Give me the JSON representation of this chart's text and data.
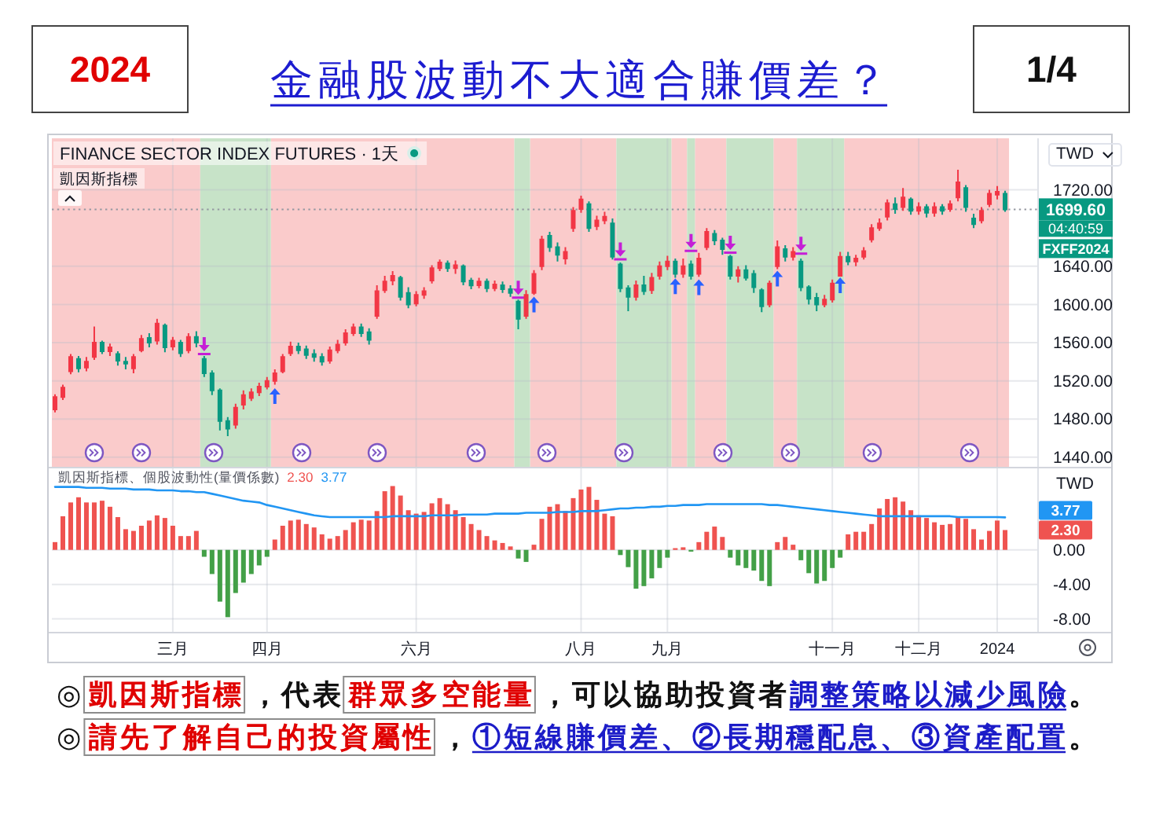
{
  "chart_data": [
    {
      "type": "candlestick",
      "title": "金融股波動不大適合賺價差？",
      "subtitle": "FINANCE SECTOR INDEX FUTURES · 1天",
      "ylabel": "TWD",
      "annotations": [
        "2024",
        "1/4",
        "凱因斯指標",
        "FXFF2024",
        "04:40:59"
      ],
      "categories": [
        null,
        null,
        null,
        null,
        null,
        null,
        null,
        null,
        null,
        null,
        null,
        null,
        null,
        null,
        null,
        null,
        null,
        null,
        null,
        null,
        null,
        null,
        null,
        null,
        null,
        null,
        null,
        null,
        null,
        null,
        null,
        null,
        null,
        null,
        null,
        null,
        null,
        null,
        null,
        null,
        null,
        null,
        null,
        null,
        null,
        null,
        null,
        null,
        null,
        null,
        null,
        null,
        null,
        null,
        null,
        null,
        null,
        null,
        null,
        null,
        null,
        null,
        null,
        null,
        null,
        null,
        null,
        null,
        null,
        null,
        null,
        null,
        null,
        null,
        null,
        null,
        null,
        null,
        null,
        null,
        null,
        null,
        null,
        null,
        null,
        null,
        null,
        null,
        null,
        null,
        null,
        null,
        null,
        null,
        null,
        null,
        null,
        null,
        null,
        null,
        null,
        null,
        null,
        null,
        null,
        null,
        null,
        null,
        null,
        null,
        null,
        null,
        null,
        null,
        null,
        null,
        null,
        null,
        null,
        null,
        null,
        null
      ],
      "ohlc": [
        [
          1490,
          1506,
          1487,
          1503
        ],
        [
          1503,
          1516,
          1500,
          1513
        ],
        [
          1530,
          1548,
          1527,
          1545
        ],
        [
          1543,
          1546,
          1529,
          1533
        ],
        [
          1534,
          1545,
          1530,
          1540
        ],
        [
          1545,
          1577,
          1542,
          1560
        ],
        [
          1560,
          1562,
          1548,
          1551
        ],
        [
          1551,
          1559,
          1546,
          1555
        ],
        [
          1548,
          1551,
          1536,
          1541
        ],
        [
          1540,
          1545,
          1532,
          1538
        ],
        [
          1533,
          1548,
          1528,
          1545
        ],
        [
          1552,
          1568,
          1550,
          1564
        ],
        [
          1565,
          1570,
          1555,
          1560
        ],
        [
          1562,
          1585,
          1558,
          1580
        ],
        [
          1578,
          1580,
          1550,
          1555
        ],
        [
          1556,
          1566,
          1552,
          1562
        ],
        [
          1560,
          1563,
          1545,
          1549
        ],
        [
          1552,
          1570,
          1549,
          1566
        ],
        [
          1566,
          1572,
          1555,
          1560
        ],
        [
          1543,
          1546,
          1524,
          1528
        ],
        [
          1528,
          1531,
          1505,
          1510
        ],
        [
          1510,
          1512,
          1468,
          1478
        ],
        [
          1478,
          1482,
          1462,
          1470
        ],
        [
          1474,
          1496,
          1470,
          1492
        ],
        [
          1495,
          1510,
          1490,
          1505
        ],
        [
          1502,
          1512,
          1499,
          1508
        ],
        [
          1508,
          1518,
          1504,
          1514
        ],
        [
          1514,
          1524,
          1511,
          1520
        ],
        [
          1520,
          1532,
          1516,
          1528
        ],
        [
          1530,
          1548,
          1528,
          1545
        ],
        [
          1549,
          1561,
          1546,
          1556
        ],
        [
          1556,
          1560,
          1548,
          1552
        ],
        [
          1553,
          1557,
          1543,
          1547
        ],
        [
          1548,
          1553,
          1540,
          1545
        ],
        [
          1545,
          1549,
          1536,
          1540
        ],
        [
          1541,
          1556,
          1538,
          1552
        ],
        [
          1552,
          1563,
          1549,
          1558
        ],
        [
          1560,
          1574,
          1557,
          1570
        ],
        [
          1570,
          1580,
          1567,
          1576
        ],
        [
          1576,
          1580,
          1566,
          1570
        ],
        [
          1571,
          1575,
          1558,
          1563
        ],
        [
          1588,
          1620,
          1585,
          1614
        ],
        [
          1615,
          1630,
          1612,
          1624
        ],
        [
          1625,
          1635,
          1620,
          1630
        ],
        [
          1628,
          1630,
          1604,
          1608
        ],
        [
          1612,
          1618,
          1596,
          1600
        ],
        [
          1601,
          1614,
          1598,
          1610
        ],
        [
          1610,
          1618,
          1606,
          1614
        ],
        [
          1625,
          1641,
          1622,
          1638
        ],
        [
          1638,
          1647,
          1635,
          1644
        ],
        [
          1643,
          1646,
          1634,
          1638
        ],
        [
          1638,
          1646,
          1632,
          1641
        ],
        [
          1640,
          1642,
          1620,
          1624
        ],
        [
          1625,
          1628,
          1616,
          1620
        ],
        [
          1620,
          1628,
          1617,
          1624
        ],
        [
          1624,
          1627,
          1613,
          1617
        ],
        [
          1617,
          1625,
          1614,
          1621
        ],
        [
          1620,
          1624,
          1612,
          1616
        ],
        [
          1616,
          1620,
          1608,
          1612
        ],
        [
          1603,
          1605,
          1574,
          1585
        ],
        [
          1588,
          1615,
          1585,
          1610
        ],
        [
          1612,
          1636,
          1610,
          1632
        ],
        [
          1640,
          1672,
          1636,
          1668
        ],
        [
          1672,
          1676,
          1655,
          1660
        ],
        [
          1660,
          1665,
          1645,
          1652
        ],
        [
          1648,
          1660,
          1642,
          1655
        ],
        [
          1680,
          1702,
          1676,
          1698
        ],
        [
          1700,
          1714,
          1696,
          1710
        ],
        [
          1705,
          1708,
          1676,
          1680
        ],
        [
          1682,
          1693,
          1678,
          1688
        ],
        [
          1688,
          1697,
          1684,
          1692
        ],
        [
          1685,
          1690,
          1647,
          1650
        ],
        [
          1642,
          1644,
          1613,
          1617
        ],
        [
          1617,
          1620,
          1593,
          1608
        ],
        [
          1608,
          1625,
          1604,
          1620
        ],
        [
          1620,
          1630,
          1610,
          1614
        ],
        [
          1615,
          1633,
          1611,
          1628
        ],
        [
          1630,
          1645,
          1626,
          1640
        ],
        [
          1640,
          1651,
          1636,
          1645
        ],
        [
          1645,
          1648,
          1628,
          1632
        ],
        [
          1632,
          1648,
          1628,
          1640
        ],
        [
          1642,
          1646,
          1626,
          1630
        ],
        [
          1632,
          1654,
          1629,
          1648
        ],
        [
          1660,
          1680,
          1657,
          1676
        ],
        [
          1674,
          1678,
          1662,
          1667
        ],
        [
          1667,
          1670,
          1652,
          1658
        ],
        [
          1650,
          1652,
          1626,
          1630
        ],
        [
          1630,
          1640,
          1623,
          1636
        ],
        [
          1636,
          1641,
          1625,
          1628
        ],
        [
          1632,
          1636,
          1612,
          1618
        ],
        [
          1615,
          1617,
          1592,
          1598
        ],
        [
          1600,
          1625,
          1597,
          1622
        ],
        [
          1640,
          1667,
          1637,
          1660
        ],
        [
          1658,
          1662,
          1645,
          1650
        ],
        [
          1650,
          1660,
          1646,
          1655
        ],
        [
          1645,
          1648,
          1614,
          1618
        ],
        [
          1618,
          1620,
          1600,
          1606
        ],
        [
          1607,
          1612,
          1593,
          1600
        ],
        [
          1600,
          1610,
          1597,
          1605
        ],
        [
          1605,
          1626,
          1602,
          1622
        ],
        [
          1630,
          1655,
          1630,
          1650
        ],
        [
          1650,
          1655,
          1641,
          1645
        ],
        [
          1645,
          1652,
          1640,
          1648
        ],
        [
          1650,
          1660,
          1647,
          1656
        ],
        [
          1668,
          1684,
          1665,
          1680
        ],
        [
          1680,
          1690,
          1677,
          1685
        ],
        [
          1692,
          1710,
          1688,
          1706
        ],
        [
          1705,
          1712,
          1695,
          1700
        ],
        [
          1702,
          1722,
          1698,
          1712
        ],
        [
          1710,
          1712,
          1694,
          1698
        ],
        [
          1698,
          1707,
          1694,
          1702
        ],
        [
          1702,
          1705,
          1691,
          1696
        ],
        [
          1696,
          1707,
          1692,
          1702
        ],
        [
          1702,
          1705,
          1694,
          1698
        ],
        [
          1700,
          1709,
          1697,
          1705
        ],
        [
          1712,
          1741,
          1708,
          1728
        ],
        [
          1722,
          1725,
          1697,
          1702
        ],
        [
          1690,
          1695,
          1680,
          1684
        ],
        [
          1688,
          1702,
          1685,
          1698
        ],
        [
          1705,
          1720,
          1702,
          1716
        ],
        [
          1715,
          1724,
          1710,
          1718
        ],
        [
          1716,
          1719,
          1697,
          1699.6
        ]
      ],
      "colors": [
        "#f23645",
        "#f23645",
        "#f23645",
        "#089981",
        "#f23645",
        "#f23645",
        "#089981",
        "#f23645",
        "#089981",
        "#089981",
        "#f23645",
        "#f23645",
        "#089981",
        "#f23645",
        "#089981",
        "#f23645",
        "#089981",
        "#f23645",
        "#089981",
        "#089981",
        "#089981",
        "#089981",
        "#089981",
        "#f23645",
        "#f23645",
        "#f23645",
        "#f23645",
        "#f23645",
        "#f23645",
        "#f23645",
        "#f23645",
        "#089981",
        "#089981",
        "#089981",
        "#089981",
        "#f23645",
        "#f23645",
        "#f23645",
        "#f23645",
        "#089981",
        "#089981",
        "#f23645",
        "#f23645",
        "#f23645",
        "#089981",
        "#089981",
        "#f23645",
        "#f23645",
        "#f23645",
        "#f23645",
        "#089981",
        "#f23645",
        "#089981",
        "#089981",
        "#f23645",
        "#089981",
        "#f23645",
        "#089981",
        "#089981",
        "#089981",
        "#f23645",
        "#f23645",
        "#f23645",
        "#089981",
        "#089981",
        "#f23645",
        "#f23645",
        "#f23645",
        "#089981",
        "#f23645",
        "#f23645",
        "#089981",
        "#089981",
        "#089981",
        "#f23645",
        "#089981",
        "#f23645",
        "#f23645",
        "#f23645",
        "#089981",
        "#f23645",
        "#089981",
        "#f23645",
        "#f23645",
        "#089981",
        "#089981",
        "#089981",
        "#f23645",
        "#089981",
        "#089981",
        "#089981",
        "#f23645",
        "#f23645",
        "#089981",
        "#f23645",
        "#089981",
        "#089981",
        "#089981",
        "#f23645",
        "#f23645",
        "#f23645",
        "#089981",
        "#f23645",
        "#f23645",
        "#f23645",
        "#f23645",
        "#f23645",
        "#089981",
        "#f23645",
        "#089981",
        "#f23645",
        "#089981",
        "#f23645",
        "#089981",
        "#f23645",
        "#f23645",
        "#089981",
        "#089981",
        "#f23645",
        "#f23645",
        "#f23645",
        "#089981"
      ],
      "series": [
        {
          "type": "scatter",
          "color": "#2962ff",
          "marker": "triangle",
          "values": [
            null,
            null,
            null,
            null,
            null,
            null,
            null,
            null,
            null,
            null,
            null,
            null,
            null,
            null,
            null,
            null,
            null,
            null,
            null,
            null,
            null,
            null,
            null,
            null,
            null,
            null,
            null,
            null,
            1504,
            null,
            null,
            null,
            null,
            null,
            null,
            null,
            null,
            null,
            null,
            null,
            null,
            null,
            null,
            null,
            null,
            null,
            null,
            null,
            null,
            null,
            null,
            null,
            null,
            null,
            null,
            null,
            null,
            null,
            null,
            null,
            null,
            1600,
            null,
            null,
            null,
            null,
            null,
            null,
            null,
            null,
            null,
            null,
            null,
            null,
            null,
            null,
            null,
            null,
            null,
            1619,
            null,
            null,
            1618,
            null,
            null,
            null,
            null,
            null,
            null,
            null,
            null,
            null,
            1627,
            null,
            null,
            null,
            null,
            null,
            null,
            null,
            1620,
            null,
            null,
            null,
            null,
            null,
            null,
            null,
            null,
            null,
            null,
            null,
            null,
            null,
            null,
            null,
            null,
            null,
            null,
            null,
            null,
            null
          ]
        },
        {
          "type": "scatter",
          "color": "#c51fd6",
          "marker": "triangle",
          "values": [
            null,
            null,
            null,
            null,
            null,
            null,
            null,
            null,
            null,
            null,
            null,
            null,
            null,
            null,
            null,
            null,
            null,
            null,
            null,
            1556,
            null,
            null,
            null,
            null,
            null,
            null,
            null,
            null,
            null,
            null,
            null,
            null,
            null,
            null,
            null,
            null,
            null,
            null,
            null,
            null,
            null,
            null,
            null,
            null,
            null,
            null,
            null,
            null,
            null,
            null,
            null,
            null,
            null,
            null,
            null,
            null,
            null,
            null,
            null,
            1615,
            null,
            null,
            null,
            null,
            null,
            null,
            null,
            null,
            null,
            null,
            null,
            null,
            1655,
            null,
            null,
            null,
            null,
            null,
            null,
            null,
            null,
            1664,
            null,
            null,
            null,
            null,
            1662,
            null,
            null,
            null,
            null,
            null,
            null,
            null,
            null,
            1661,
            null,
            null,
            null,
            null,
            null,
            null,
            null,
            null,
            null,
            null,
            null,
            null,
            null,
            null,
            null,
            null,
            null,
            null,
            null,
            null,
            null,
            null,
            null,
            null,
            null,
            null
          ]
        }
      ],
      "ylim": [
        1430,
        1774
      ],
      "yticks": [
        {
          "value": 1440,
          "label": "1440.00"
        },
        {
          "value": 1480,
          "label": "1480.00"
        },
        {
          "value": 1520,
          "label": "1520.00"
        },
        {
          "value": 1560,
          "label": "1560.00"
        },
        {
          "value": 1600,
          "label": "1600.00"
        },
        {
          "value": 1640,
          "label": "1640.00"
        },
        {
          "value": 1720,
          "label": "1720.00"
        }
      ],
      "ref_lines": [
        {
          "axis": "y",
          "value": 1699.6,
          "label": "1699.60",
          "color": "#9598a1",
          "line_style": "dotted"
        }
      ],
      "grid": true
    },
    {
      "type": "bar",
      "title": "凱因斯指標、個股波動性(量價係數)",
      "ylabel": "TWD",
      "annotations": [
        "2.30",
        "3.77",
        "2.30",
        "3.77",
        "◎",
        "凱因斯指標",
        "，代表",
        "群眾多空能量",
        "，可以協助投資者",
        "調整策略以減少風險",
        "。",
        "◎",
        "請先了解自己的投資屬性",
        "，",
        "①短線賺價差、②長期穩配息、③資產配置",
        "。"
      ],
      "categories": [
        null,
        null,
        null,
        null,
        null,
        null,
        null,
        null,
        null,
        null,
        null,
        null,
        null,
        null,
        null,
        "三月",
        null,
        null,
        null,
        null,
        null,
        null,
        null,
        null,
        null,
        null,
        null,
        "四月",
        null,
        null,
        null,
        null,
        null,
        null,
        null,
        null,
        null,
        null,
        null,
        null,
        null,
        null,
        null,
        null,
        null,
        null,
        "六月",
        null,
        null,
        null,
        null,
        null,
        null,
        null,
        null,
        null,
        null,
        null,
        null,
        null,
        null,
        null,
        null,
        null,
        null,
        null,
        null,
        "八月",
        null,
        null,
        null,
        null,
        null,
        null,
        null,
        null,
        null,
        null,
        "九月",
        null,
        null,
        null,
        null,
        null,
        null,
        null,
        null,
        null,
        null,
        null,
        null,
        null,
        null,
        null,
        null,
        null,
        null,
        null,
        null,
        "十一月",
        null,
        null,
        null,
        null,
        null,
        null,
        null,
        null,
        null,
        null,
        "十二月",
        null,
        null,
        null,
        null,
        null,
        null,
        null,
        null,
        null,
        "2024",
        null
      ],
      "series": [
        {
          "colors": [
            "#ef5350",
            "#ef5350",
            "#ef5350",
            "#ef5350",
            "#ef5350",
            "#ef5350",
            "#ef5350",
            "#ef5350",
            "#ef5350",
            "#ef5350",
            "#ef5350",
            "#ef5350",
            "#ef5350",
            "#ef5350",
            "#ef5350",
            "#ef5350",
            "#ef5350",
            "#ef5350",
            "#ef5350",
            "#43a047",
            "#43a047",
            "#43a047",
            "#43a047",
            "#43a047",
            "#43a047",
            "#43a047",
            "#43a047",
            "#43a047",
            "#ef5350",
            "#ef5350",
            "#ef5350",
            "#ef5350",
            "#ef5350",
            "#ef5350",
            "#ef5350",
            "#ef5350",
            "#ef5350",
            "#ef5350",
            "#ef5350",
            "#ef5350",
            "#ef5350",
            "#ef5350",
            "#ef5350",
            "#ef5350",
            "#ef5350",
            "#ef5350",
            "#ef5350",
            "#ef5350",
            "#ef5350",
            "#ef5350",
            "#ef5350",
            "#ef5350",
            "#ef5350",
            "#ef5350",
            "#ef5350",
            "#ef5350",
            "#ef5350",
            "#ef5350",
            "#ef5350",
            "#43a047",
            "#43a047",
            "#ef5350",
            "#ef5350",
            "#ef5350",
            "#ef5350",
            "#ef5350",
            "#ef5350",
            "#ef5350",
            "#ef5350",
            "#ef5350",
            "#ef5350",
            "#ef5350",
            "#43a047",
            "#43a047",
            "#43a047",
            "#43a047",
            "#43a047",
            "#43a047",
            "#43a047",
            "#ef5350",
            "#ef5350",
            "#43a047",
            "#ef5350",
            "#ef5350",
            "#ef5350",
            "#ef5350",
            "#43a047",
            "#43a047",
            "#43a047",
            "#43a047",
            "#43a047",
            "#43a047",
            "#ef5350",
            "#ef5350",
            "#ef5350",
            "#43a047",
            "#43a047",
            "#43a047",
            "#43a047",
            "#43a047",
            "#43a047",
            "#ef5350",
            "#ef5350",
            "#ef5350",
            "#ef5350",
            "#ef5350",
            "#ef5350",
            "#ef5350",
            "#ef5350",
            "#ef5350",
            "#ef5350",
            "#ef5350",
            "#ef5350",
            "#ef5350",
            "#ef5350",
            "#ef5350",
            "#ef5350",
            "#ef5350",
            "#ef5350",
            "#ef5350",
            "#ef5350",
            "#ef5350"
          ],
          "values": [
            0.9,
            3.9,
            5.5,
            6.1,
            5.5,
            5.5,
            5.7,
            5.0,
            3.8,
            2.4,
            2.2,
            2.8,
            3.4,
            4.0,
            3.7,
            2.8,
            1.6,
            1.6,
            2.2,
            -0.8,
            -2.8,
            -6.0,
            -7.8,
            -5.0,
            -3.8,
            -2.8,
            -1.8,
            -0.8,
            1.2,
            2.8,
            3.4,
            3.5,
            3.0,
            2.6,
            1.8,
            1.3,
            1.6,
            2.3,
            3.2,
            3.5,
            3.4,
            4.5,
            6.8,
            7.4,
            6.3,
            4.6,
            4.2,
            4.4,
            5.4,
            6.0,
            5.3,
            4.6,
            3.8,
            3.0,
            2.3,
            1.6,
            1.1,
            0.8,
            0.4,
            -1.0,
            -1.4,
            0.6,
            3.6,
            5.0,
            5.3,
            4.5,
            6.0,
            7.0,
            7.3,
            5.8,
            4.2,
            3.9,
            -0.6,
            -2.0,
            -4.5,
            -4.2,
            -3.3,
            -2.1,
            -0.9,
            0.2,
            0.3,
            -0.2,
            0.9,
            2.1,
            2.7,
            1.5,
            -0.9,
            -1.8,
            -2.1,
            -2.4,
            -3.6,
            -4.2,
            0.9,
            1.5,
            0.6,
            -1.2,
            -2.7,
            -3.9,
            -3.6,
            -2.1,
            -0.9,
            1.8,
            2.1,
            2.1,
            3.0,
            4.8,
            5.9,
            6.1,
            5.6,
            4.6,
            4.0,
            3.7,
            3.2,
            2.9,
            3.0,
            3.8,
            3.6,
            2.4,
            1.2,
            2.2,
            3.4,
            2.3
          ]
        },
        {
          "type": "line",
          "color": "#2196f3",
          "values": [
            7.3,
            7.3,
            7.3,
            7.3,
            7.2,
            7.2,
            7.2,
            7.1,
            7.1,
            7.1,
            7.0,
            7.0,
            7.0,
            6.9,
            6.9,
            6.9,
            6.8,
            6.8,
            6.7,
            6.7,
            6.5,
            6.3,
            6.1,
            5.9,
            5.7,
            5.6,
            5.5,
            5.2,
            5.0,
            4.8,
            4.6,
            4.4,
            4.2,
            4.0,
            3.9,
            3.8,
            3.8,
            3.8,
            3.8,
            3.8,
            3.8,
            3.8,
            3.8,
            3.9,
            3.9,
            3.9,
            3.9,
            3.9,
            4.0,
            4.0,
            4.0,
            4.0,
            4.1,
            4.1,
            4.1,
            4.1,
            4.2,
            4.2,
            4.2,
            4.2,
            4.3,
            4.3,
            4.3,
            4.3,
            4.4,
            4.4,
            4.4,
            4.5,
            4.5,
            4.5,
            4.6,
            4.7,
            4.8,
            4.8,
            4.9,
            4.9,
            5.0,
            5.0,
            5.1,
            5.1,
            5.2,
            5.2,
            5.2,
            5.3,
            5.3,
            5.3,
            5.3,
            5.3,
            5.3,
            5.3,
            5.3,
            5.2,
            5.2,
            5.1,
            5.0,
            4.9,
            4.8,
            4.7,
            4.6,
            4.5,
            4.4,
            4.3,
            4.2,
            4.1,
            4.0,
            3.9,
            3.9,
            3.9,
            3.9,
            3.9,
            3.9,
            3.9,
            3.9,
            3.9,
            3.9,
            3.8,
            3.8,
            3.8,
            3.8,
            3.8,
            3.8,
            3.77
          ]
        }
      ],
      "ylim": [
        -9.5,
        9.45
      ],
      "yticks": [
        {
          "value": 0,
          "label": "0.00"
        },
        {
          "value": -4,
          "label": "-4.00"
        },
        {
          "value": -8,
          "label": "-8.00"
        }
      ],
      "grid": true
    }
  ]
}
